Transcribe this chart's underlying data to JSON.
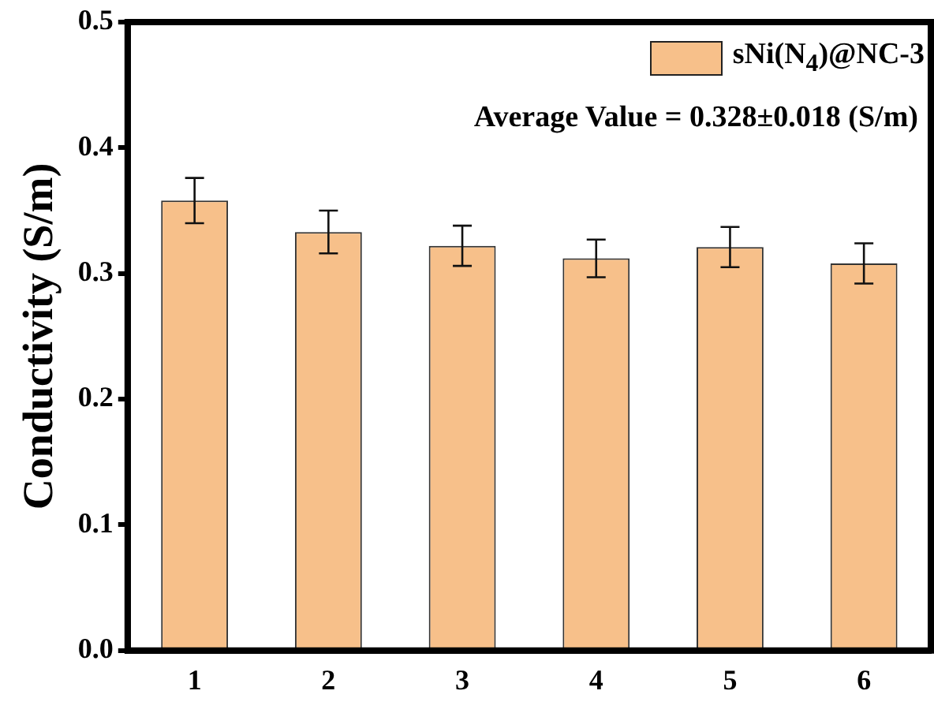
{
  "chart_data": {
    "type": "bar",
    "ylabel": "Conductivity (S/m)",
    "categories": [
      "1",
      "2",
      "3",
      "4",
      "5",
      "6"
    ],
    "series": [
      {
        "name": "sNi(N$_{4}$)@NC-3",
        "color": "#f7c08a",
        "values": [
          0.358,
          0.333,
          0.322,
          0.312,
          0.321,
          0.308
        ],
        "errors": [
          0.018,
          0.017,
          0.016,
          0.015,
          0.016,
          0.016
        ]
      }
    ],
    "ylim": [
      0,
      0.5
    ],
    "yticks": [
      {
        "value": 0,
        "label": "0.0"
      },
      0.1,
      0.2,
      0.3,
      0.4,
      0.5
    ],
    "annotations": [
      "Average Value = 0.328±0.018 (S/m)"
    ],
    "legend": "top right",
    "grid": false
  }
}
